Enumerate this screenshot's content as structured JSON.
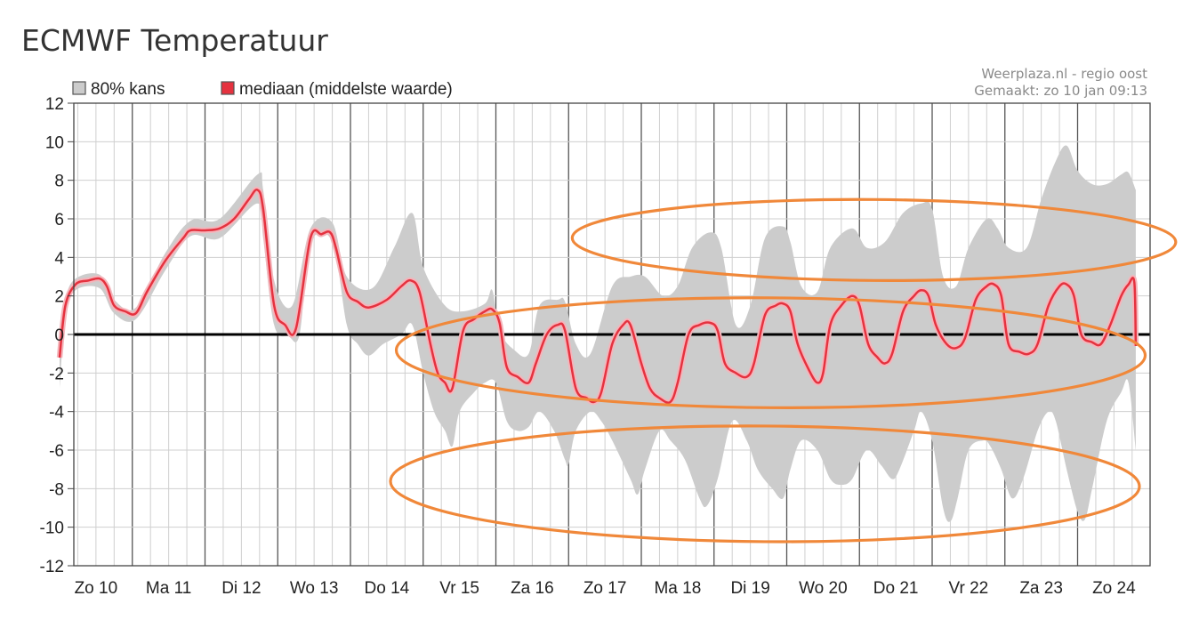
{
  "page": {
    "title": "ECMWF Temperatuur"
  },
  "credit": {
    "line1": "Weerplaza.nl - regio oost",
    "line2": "Gemaakt: zo 10 jan 09:13"
  },
  "colors": {
    "band": "#cccccc",
    "median": "#e5323f",
    "median_halo": "#f4b5bb",
    "zero_line": "#000000",
    "grid_major": "#555555",
    "grid_minor": "#cfcfcf",
    "annotation": "#f0883a"
  },
  "chart_data": {
    "type": "line",
    "x_unit": "days since Zo 10 00:00",
    "ylim": [
      -12,
      12
    ],
    "xlim": [
      0,
      14.8
    ],
    "y_ticks": [
      12,
      10,
      8,
      6,
      4,
      2,
      0,
      -2,
      -4,
      -6,
      -8,
      -10,
      -12
    ],
    "grid": true,
    "legend_position": "top-left",
    "categories": [
      "Zo 10",
      "Ma 11",
      "Di 12",
      "Wo 13",
      "Do 14",
      "Vr 15",
      "Za 16",
      "Zo 17",
      "Ma 18",
      "Di 19",
      "Wo 20",
      "Do 21",
      "Vr 22",
      "Za 23",
      "Zo 24"
    ],
    "series": [
      {
        "name": "mediaan (middelste waarde)",
        "kind": "line",
        "points": [
          [
            0.0,
            -1.2
          ],
          [
            0.08,
            1.5
          ],
          [
            0.22,
            2.6
          ],
          [
            0.4,
            2.8
          ],
          [
            0.55,
            2.9
          ],
          [
            0.65,
            2.5
          ],
          [
            0.75,
            1.5
          ],
          [
            0.9,
            1.2
          ],
          [
            1.05,
            1.1
          ],
          [
            1.2,
            2.2
          ],
          [
            1.45,
            3.8
          ],
          [
            1.7,
            5.0
          ],
          [
            1.8,
            5.4
          ],
          [
            2.0,
            5.4
          ],
          [
            2.2,
            5.5
          ],
          [
            2.4,
            6.0
          ],
          [
            2.6,
            7.0
          ],
          [
            2.72,
            7.5
          ],
          [
            2.8,
            6.5
          ],
          [
            2.95,
            1.5
          ],
          [
            3.1,
            0.5
          ],
          [
            3.25,
            0.3
          ],
          [
            3.45,
            5.0
          ],
          [
            3.6,
            5.2
          ],
          [
            3.72,
            5.3
          ],
          [
            3.8,
            4.5
          ],
          [
            3.95,
            2.2
          ],
          [
            4.1,
            1.7
          ],
          [
            4.25,
            1.4
          ],
          [
            4.5,
            1.8
          ],
          [
            4.7,
            2.5
          ],
          [
            4.83,
            2.8
          ],
          [
            4.95,
            2.2
          ],
          [
            5.1,
            -0.5
          ],
          [
            5.2,
            -2.0
          ],
          [
            5.3,
            -2.5
          ],
          [
            5.4,
            -2.8
          ],
          [
            5.55,
            0.2
          ],
          [
            5.7,
            0.8
          ],
          [
            5.85,
            1.2
          ],
          [
            5.95,
            1.3
          ],
          [
            6.05,
            0.6
          ],
          [
            6.15,
            -1.7
          ],
          [
            6.3,
            -2.2
          ],
          [
            6.45,
            -2.5
          ],
          [
            6.55,
            -1.5
          ],
          [
            6.7,
            0.0
          ],
          [
            6.85,
            0.5
          ],
          [
            6.95,
            0.2
          ],
          [
            7.1,
            -2.8
          ],
          [
            7.25,
            -3.3
          ],
          [
            7.35,
            -3.5
          ],
          [
            7.45,
            -3.0
          ],
          [
            7.6,
            -0.5
          ],
          [
            7.75,
            0.5
          ],
          [
            7.85,
            0.5
          ],
          [
            8.0,
            -1.5
          ],
          [
            8.12,
            -2.8
          ],
          [
            8.25,
            -3.3
          ],
          [
            8.4,
            -3.5
          ],
          [
            8.5,
            -2.5
          ],
          [
            8.65,
            0.0
          ],
          [
            8.8,
            0.5
          ],
          [
            8.95,
            0.6
          ],
          [
            9.05,
            0.2
          ],
          [
            9.15,
            -1.5
          ],
          [
            9.3,
            -2.0
          ],
          [
            9.45,
            -2.2
          ],
          [
            9.55,
            -1.5
          ],
          [
            9.7,
            1.0
          ],
          [
            9.85,
            1.5
          ],
          [
            9.95,
            1.6
          ],
          [
            10.05,
            1.2
          ],
          [
            10.15,
            -0.5
          ],
          [
            10.3,
            -1.8
          ],
          [
            10.42,
            -2.5
          ],
          [
            10.5,
            -2.0
          ],
          [
            10.6,
            0.5
          ],
          [
            10.75,
            1.5
          ],
          [
            10.9,
            2.0
          ],
          [
            11.0,
            1.5
          ],
          [
            11.12,
            -0.5
          ],
          [
            11.25,
            -1.2
          ],
          [
            11.35,
            -1.5
          ],
          [
            11.45,
            -1.0
          ],
          [
            11.6,
            1.2
          ],
          [
            11.75,
            2.0
          ],
          [
            11.85,
            2.3
          ],
          [
            11.95,
            2.0
          ],
          [
            12.05,
            0.5
          ],
          [
            12.2,
            -0.5
          ],
          [
            12.33,
            -0.7
          ],
          [
            12.45,
            -0.2
          ],
          [
            12.6,
            1.8
          ],
          [
            12.75,
            2.5
          ],
          [
            12.85,
            2.6
          ],
          [
            12.95,
            2.0
          ],
          [
            13.05,
            -0.5
          ],
          [
            13.2,
            -0.9
          ],
          [
            13.33,
            -1.0
          ],
          [
            13.45,
            -0.5
          ],
          [
            13.6,
            1.5
          ],
          [
            13.75,
            2.5
          ],
          [
            13.85,
            2.6
          ],
          [
            13.95,
            2.0
          ],
          [
            14.05,
            0.0
          ],
          [
            14.2,
            -0.4
          ],
          [
            14.32,
            -0.5
          ],
          [
            14.45,
            0.5
          ],
          [
            14.6,
            2.0
          ],
          [
            14.7,
            2.6
          ],
          [
            14.78,
            2.7
          ],
          [
            14.8,
            -0.6
          ]
        ]
      },
      {
        "name": "80% kans",
        "kind": "band",
        "upper": [
          [
            0.0,
            -0.9
          ],
          [
            0.08,
            1.8
          ],
          [
            0.22,
            2.9
          ],
          [
            0.55,
            3.1
          ],
          [
            0.75,
            1.8
          ],
          [
            1.05,
            1.4
          ],
          [
            1.45,
            4.2
          ],
          [
            1.8,
            5.9
          ],
          [
            2.2,
            6.0
          ],
          [
            2.72,
            8.3
          ],
          [
            2.8,
            7.5
          ],
          [
            2.95,
            2.8
          ],
          [
            3.2,
            1.5
          ],
          [
            3.45,
            5.5
          ],
          [
            3.75,
            5.8
          ],
          [
            3.95,
            3.0
          ],
          [
            4.3,
            2.4
          ],
          [
            4.6,
            4.5
          ],
          [
            4.85,
            6.3
          ],
          [
            5.0,
            3.5
          ],
          [
            5.3,
            1.5
          ],
          [
            5.55,
            1.2
          ],
          [
            5.85,
            1.6
          ],
          [
            5.95,
            2.3
          ],
          [
            6.05,
            0.2
          ],
          [
            6.25,
            -0.8
          ],
          [
            6.45,
            -1.0
          ],
          [
            6.6,
            1.5
          ],
          [
            6.85,
            1.8
          ],
          [
            6.95,
            1.7
          ],
          [
            7.1,
            -0.5
          ],
          [
            7.3,
            -1.0
          ],
          [
            7.6,
            2.5
          ],
          [
            7.85,
            3.0
          ],
          [
            8.05,
            3.0
          ],
          [
            8.3,
            2.0
          ],
          [
            8.5,
            2.5
          ],
          [
            8.7,
            4.5
          ],
          [
            8.95,
            5.3
          ],
          [
            9.1,
            4.5
          ],
          [
            9.3,
            0.5
          ],
          [
            9.5,
            1.5
          ],
          [
            9.7,
            5.0
          ],
          [
            9.95,
            5.6
          ],
          [
            10.05,
            4.8
          ],
          [
            10.2,
            2.5
          ],
          [
            10.42,
            2.2
          ],
          [
            10.6,
            4.5
          ],
          [
            10.9,
            5.5
          ],
          [
            11.1,
            4.5
          ],
          [
            11.35,
            4.8
          ],
          [
            11.6,
            6.3
          ],
          [
            11.85,
            6.8
          ],
          [
            12.0,
            6.5
          ],
          [
            12.15,
            3.0
          ],
          [
            12.33,
            2.5
          ],
          [
            12.5,
            4.5
          ],
          [
            12.75,
            6.0
          ],
          [
            12.9,
            5.5
          ],
          [
            13.05,
            4.5
          ],
          [
            13.3,
            4.5
          ],
          [
            13.5,
            7.0
          ],
          [
            13.7,
            9.0
          ],
          [
            13.85,
            9.8
          ],
          [
            14.0,
            8.5
          ],
          [
            14.2,
            7.8
          ],
          [
            14.4,
            7.8
          ],
          [
            14.6,
            8.3
          ],
          [
            14.7,
            8.4
          ],
          [
            14.8,
            7.5
          ]
        ],
        "lower": [
          [
            0.0,
            -2.8
          ],
          [
            0.08,
            1.0
          ],
          [
            0.22,
            2.3
          ],
          [
            0.55,
            2.4
          ],
          [
            0.75,
            1.1
          ],
          [
            1.05,
            0.8
          ],
          [
            1.45,
            3.3
          ],
          [
            1.8,
            5.1
          ],
          [
            2.2,
            5.0
          ],
          [
            2.72,
            6.8
          ],
          [
            2.8,
            5.0
          ],
          [
            2.95,
            0.5
          ],
          [
            3.15,
            -0.1
          ],
          [
            3.3,
            0.0
          ],
          [
            3.45,
            4.7
          ],
          [
            3.75,
            4.8
          ],
          [
            3.95,
            0.5
          ],
          [
            4.1,
            -0.5
          ],
          [
            4.25,
            -1.1
          ],
          [
            4.45,
            -0.5
          ],
          [
            4.7,
            0.0
          ],
          [
            4.85,
            0.5
          ],
          [
            5.0,
            -2.0
          ],
          [
            5.15,
            -4.0
          ],
          [
            5.3,
            -5.0
          ],
          [
            5.4,
            -5.8
          ],
          [
            5.5,
            -4.0
          ],
          [
            5.7,
            -3.0
          ],
          [
            5.85,
            -2.5
          ],
          [
            6.0,
            -2.5
          ],
          [
            6.15,
            -4.5
          ],
          [
            6.3,
            -5.0
          ],
          [
            6.45,
            -4.8
          ],
          [
            6.6,
            -4.0
          ],
          [
            6.8,
            -5.0
          ],
          [
            6.95,
            -6.5
          ],
          [
            7.0,
            -6.7
          ],
          [
            7.1,
            -5.0
          ],
          [
            7.3,
            -4.0
          ],
          [
            7.45,
            -4.5
          ],
          [
            7.6,
            -5.5
          ],
          [
            7.85,
            -7.5
          ],
          [
            7.95,
            -8.3
          ],
          [
            8.05,
            -7.0
          ],
          [
            8.25,
            -5.0
          ],
          [
            8.4,
            -5.5
          ],
          [
            8.6,
            -6.5
          ],
          [
            8.8,
            -8.5
          ],
          [
            8.9,
            -8.9
          ],
          [
            9.05,
            -7.5
          ],
          [
            9.25,
            -4.5
          ],
          [
            9.45,
            -5.5
          ],
          [
            9.6,
            -7.0
          ],
          [
            9.8,
            -8.0
          ],
          [
            9.95,
            -8.5
          ],
          [
            10.05,
            -7.0
          ],
          [
            10.2,
            -5.5
          ],
          [
            10.42,
            -6.0
          ],
          [
            10.6,
            -7.5
          ],
          [
            10.75,
            -7.8
          ],
          [
            10.9,
            -7.5
          ],
          [
            11.1,
            -6.0
          ],
          [
            11.3,
            -6.8
          ],
          [
            11.45,
            -7.5
          ],
          [
            11.55,
            -7.0
          ],
          [
            11.75,
            -5.0
          ],
          [
            11.85,
            -4.0
          ],
          [
            12.0,
            -5.5
          ],
          [
            12.15,
            -9.0
          ],
          [
            12.25,
            -9.7
          ],
          [
            12.35,
            -8.5
          ],
          [
            12.5,
            -6.0
          ],
          [
            12.7,
            -5.5
          ],
          [
            12.8,
            -5.8
          ],
          [
            12.95,
            -7.0
          ],
          [
            13.1,
            -8.5
          ],
          [
            13.25,
            -7.5
          ],
          [
            13.45,
            -5.0
          ],
          [
            13.6,
            -4.0
          ],
          [
            13.7,
            -4.5
          ],
          [
            13.85,
            -7.0
          ],
          [
            14.0,
            -9.2
          ],
          [
            14.1,
            -9.6
          ],
          [
            14.2,
            -8.0
          ],
          [
            14.4,
            -4.5
          ],
          [
            14.6,
            -3.0
          ],
          [
            14.7,
            -2.5
          ],
          [
            14.8,
            -6.0
          ]
        ]
      }
    ],
    "legend": [
      "80% kans",
      "mediaan (middelste waarde)"
    ],
    "annotations": [
      {
        "type": "ellipse",
        "color": "#f0883a",
        "cx": 11.2,
        "cy": 4.9,
        "rx": 4.15,
        "ry": 2.1
      },
      {
        "type": "ellipse",
        "color": "#f0883a",
        "cx": 9.78,
        "cy": -0.95,
        "rx": 5.15,
        "ry": 2.85
      },
      {
        "type": "ellipse",
        "color": "#f0883a",
        "cx": 9.7,
        "cy": -7.75,
        "rx": 5.15,
        "ry": 3.0
      }
    ]
  }
}
